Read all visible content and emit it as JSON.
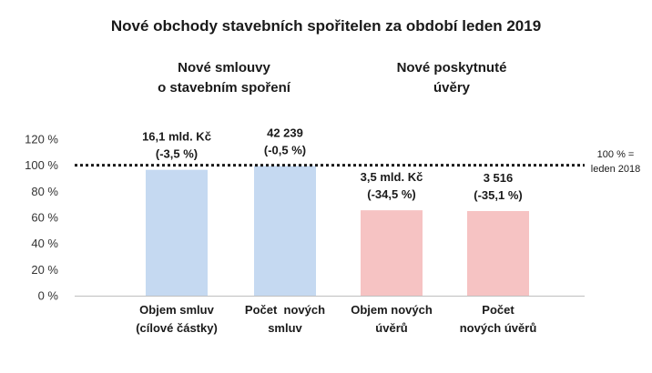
{
  "chart_data": {
    "type": "bar",
    "title": "Nové obchody stavebních spořitelen za období leden 2019",
    "groups": [
      {
        "label_lines": [
          "Nové smlouvy",
          "o stavebním spoření"
        ],
        "categories": [
          0,
          1
        ]
      },
      {
        "label_lines": [
          "Nové poskytnuté",
          "úvěry"
        ],
        "categories": [
          2,
          3
        ]
      }
    ],
    "categories": [
      [
        "Objem smluv",
        "(cílové částky)"
      ],
      [
        "Počet  nových",
        "smluv"
      ],
      [
        "Objem nových",
        "úvěrů"
      ],
      [
        "Počet",
        "nových úvěrů"
      ]
    ],
    "values": [
      96.5,
      99.5,
      65.5,
      64.9
    ],
    "data_labels": [
      [
        "16,1 mld. Kč",
        "(-3,5 %)"
      ],
      [
        "42 239",
        "(-0,5 %)"
      ],
      [
        "3,5 mld. Kč",
        "(-34,5 %)"
      ],
      [
        "3 516",
        "(-35,1 %)"
      ]
    ],
    "colors": [
      "#c5d9f1",
      "#c5d9f1",
      "#f6c3c3",
      "#f6c3c3"
    ],
    "y_ticks": [
      "0 %",
      "20 %",
      "40 %",
      "60 %",
      "80 %",
      "100 %",
      "120 %"
    ],
    "ylim": [
      0,
      120
    ],
    "reference_line": {
      "value": 100,
      "label_lines": [
        "100 % =",
        "leden 2018"
      ]
    },
    "xlabel": "",
    "ylabel": "",
    "grid": false,
    "legend": "none"
  }
}
